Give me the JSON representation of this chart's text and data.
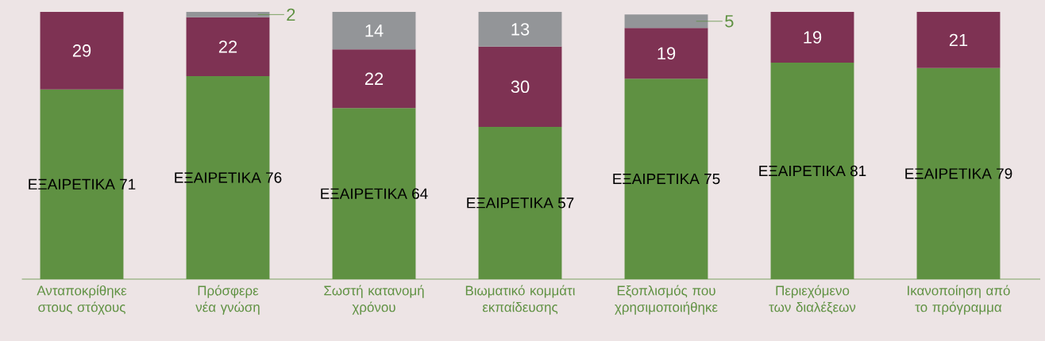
{
  "chart_data": {
    "type": "bar",
    "stacked": true,
    "categories": [
      "Ανταποκρίθηκε στους στόχους",
      "Πρόσφερε νέα γνώση",
      "Σωστή κατανομή χρόνου",
      "Βιωματικό κομμάτι εκπαίδευσης",
      "Εξοπλισμός που χρησιμοποιήθηκε",
      "Περιεχόμενο των διαλέξεων",
      "Ικανοποίηση από το πρόγραμμα"
    ],
    "series": [
      {
        "color": "#5f9142",
        "values": [
          71,
          76,
          64,
          57,
          75,
          81,
          79
        ],
        "value_labels": [
          "ΕΞΑΙΡΕΤΙΚΑ 71",
          "ΕΞΑΙΡΕΤΙΚΑ 76",
          "ΕΞΑΙΡΕΤΙΚΑ 64",
          "ΕΞΑΙΡΕΤΙΚΑ 57",
          "ΕΞΑΙΡΕΤΙΚΑ 75",
          "ΕΞΑΙΡΕΤΙΚΑ 81",
          "ΕΞΑΙΡΕΤΙΚΑ 79"
        ]
      },
      {
        "color": "#7e3253",
        "values": [
          29,
          22,
          22,
          30,
          19,
          19,
          21
        ],
        "value_labels": [
          "29",
          "22",
          "22",
          "30",
          "19",
          "19",
          "21"
        ]
      },
      {
        "color": "#939598",
        "values": [
          null,
          2,
          14,
          13,
          5,
          null,
          null
        ],
        "value_labels": [
          null,
          "2",
          "14",
          "13",
          "5",
          null,
          null
        ]
      }
    ]
  }
}
